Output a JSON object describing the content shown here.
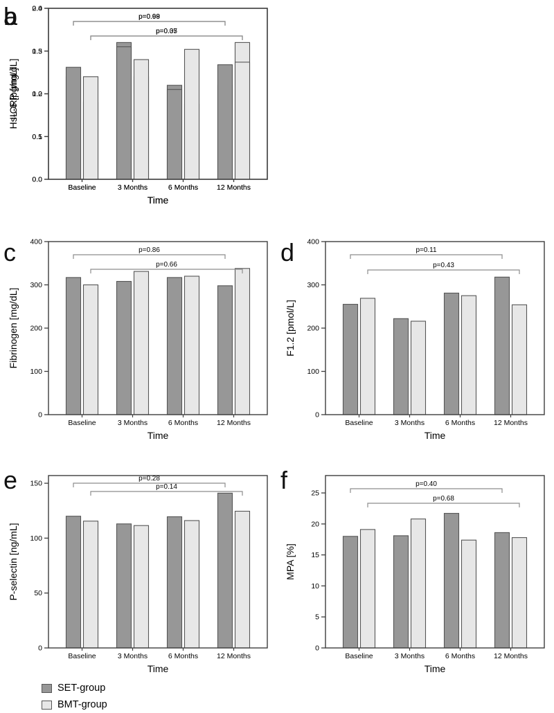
{
  "figure": {
    "description": "Six-panel grouped bar chart figure comparing SET-group and BMT-group over time",
    "background": "#ffffff"
  },
  "colors": {
    "set_fill": "#979797",
    "bmt_fill": "#e7e7e7",
    "bar_stroke": "#555555",
    "frame": "#3d3d3d",
    "bracket": "#8c8c8c",
    "text": "#000000",
    "letter": "#111111"
  },
  "legend": {
    "position": "bottom-left",
    "items": [
      {
        "label": "SET-group",
        "color": "#979797"
      },
      {
        "label": "BMT-group",
        "color": "#e7e7e7"
      }
    ]
  },
  "chart_data": [
    {
      "type": "bar",
      "panel_label": "a",
      "ylabel": "Hs-CRP [mg/dL]",
      "xlabel": "Time",
      "categories": [
        "Baseline",
        "3 Months",
        "6 Months",
        "12 Months"
      ],
      "series": [
        {
          "name": "SET-group",
          "values": [
            0.24,
            0.32,
            0.22,
            0.22
          ]
        },
        {
          "name": "BMT-group",
          "values": [
            0.18,
            0.24,
            0.175,
            0.32
          ]
        }
      ],
      "ylim": [
        0,
        0.4
      ],
      "yticks": [
        "0.0",
        "0.1",
        "0.2",
        "0.3",
        "0.4"
      ],
      "grid": false,
      "p_brackets": [
        {
          "label": "p=0.99",
          "series": 0,
          "from": 0,
          "to": 3,
          "level": 0
        },
        {
          "label": "p=0.05",
          "series": 1,
          "from": 0,
          "to": 3,
          "level": 1
        }
      ],
      "bracket_levels_y": [
        19,
        40
      ]
    },
    {
      "type": "bar",
      "panel_label": "b",
      "ylabel": "IL-6 [pg/mL]",
      "xlabel": "Time",
      "categories": [
        "Baseline",
        "3 Months",
        "6 Months",
        "12 Months"
      ],
      "series": [
        {
          "name": "SET-group",
          "values": [
            1.31,
            1.55,
            1.05,
            1.34
          ]
        },
        {
          "name": "BMT-group",
          "values": [
            1.2,
            1.4,
            1.52,
            1.37
          ]
        }
      ],
      "ylim": [
        0,
        2.0
      ],
      "yticks": [
        "0.0",
        "0.5",
        "1.0",
        "1.5",
        "2.0"
      ],
      "grid": false,
      "p_brackets": [
        {
          "label": "p=0.68",
          "series": 0,
          "from": 0,
          "to": 3,
          "level": 0
        },
        {
          "label": "p=0.37",
          "series": 1,
          "from": 0,
          "to": 3,
          "level": 1
        }
      ],
      "bracket_levels_y": [
        19,
        40
      ]
    },
    {
      "type": "bar",
      "panel_label": "c",
      "ylabel": "Fibrinogen [mg/dL]",
      "xlabel": "Time",
      "categories": [
        "Baseline",
        "3 Months",
        "6 Months",
        "12 Months"
      ],
      "series": [
        {
          "name": "SET-group",
          "values": [
            317,
            308,
            317,
            298
          ]
        },
        {
          "name": "BMT-group",
          "values": [
            300,
            331,
            320,
            338
          ]
        }
      ],
      "ylim": [
        0,
        400
      ],
      "yticks": [
        "0",
        "100",
        "200",
        "300",
        "400"
      ],
      "grid": false,
      "p_brackets": [
        {
          "label": "p=0.86",
          "series": 0,
          "from": 0,
          "to": 3,
          "level": 0
        },
        {
          "label": "p=0.66",
          "series": 1,
          "from": 0,
          "to": 3,
          "level": 1
        }
      ],
      "bracket_levels_y": [
        19,
        40
      ]
    },
    {
      "type": "bar",
      "panel_label": "d",
      "ylabel": "F1.2 [pmol/L]",
      "xlabel": "Time",
      "categories": [
        "Baseline",
        "3 Months",
        "6 Months",
        "12 Months"
      ],
      "series": [
        {
          "name": "SET-group",
          "values": [
            255,
            222,
            281,
            318
          ]
        },
        {
          "name": "BMT-group",
          "values": [
            269,
            216,
            275,
            254
          ]
        }
      ],
      "ylim": [
        0,
        400
      ],
      "yticks": [
        "0",
        "100",
        "200",
        "300",
        "400"
      ],
      "grid": false,
      "p_brackets": [
        {
          "label": "p=0.11",
          "series": 0,
          "from": 0,
          "to": 3,
          "level": 0
        },
        {
          "label": "p=0.43",
          "series": 1,
          "from": 0,
          "to": 3,
          "level": 1
        }
      ],
      "bracket_levels_y": [
        19,
        41
      ]
    },
    {
      "type": "bar",
      "panel_label": "e",
      "ylabel": "P-selectin [ng/mL]",
      "xlabel": "Time",
      "categories": [
        "Baseline",
        "3 Months",
        "6 Months",
        "12 Months"
      ],
      "series": [
        {
          "name": "SET-group",
          "values": [
            120,
            113,
            119.5,
            141
          ]
        },
        {
          "name": "BMT-group",
          "values": [
            115.5,
            111.5,
            116,
            124.5
          ]
        }
      ],
      "ylim": [
        0,
        157
      ],
      "yticks": [
        "0",
        "50",
        "100",
        "150"
      ],
      "grid": false,
      "p_brackets": [
        {
          "label": "p=0.28",
          "series": 0,
          "from": 0,
          "to": 3,
          "level": 0
        },
        {
          "label": "p=0.14",
          "series": 1,
          "from": 0,
          "to": 3,
          "level": 1
        }
      ],
      "bracket_levels_y": [
        11,
        23
      ]
    },
    {
      "type": "bar",
      "panel_label": "f",
      "ylabel": "MPA [%]",
      "xlabel": "Time",
      "categories": [
        "Baseline",
        "3 Months",
        "6 Months",
        "12 Months"
      ],
      "series": [
        {
          "name": "SET-group",
          "values": [
            18.0,
            18.1,
            21.7,
            18.6
          ]
        },
        {
          "name": "BMT-group",
          "values": [
            19.1,
            20.8,
            17.4,
            17.8
          ]
        }
      ],
      "ylim": [
        0,
        27.8
      ],
      "yticks": [
        "0",
        "5",
        "10",
        "15",
        "20",
        "25"
      ],
      "grid": false,
      "p_brackets": [
        {
          "label": "p=0.40",
          "series": 0,
          "from": 0,
          "to": 3,
          "level": 0
        },
        {
          "label": "p=0.68",
          "series": 1,
          "from": 0,
          "to": 3,
          "level": 1
        }
      ],
      "bracket_levels_y": [
        19,
        40
      ]
    }
  ]
}
